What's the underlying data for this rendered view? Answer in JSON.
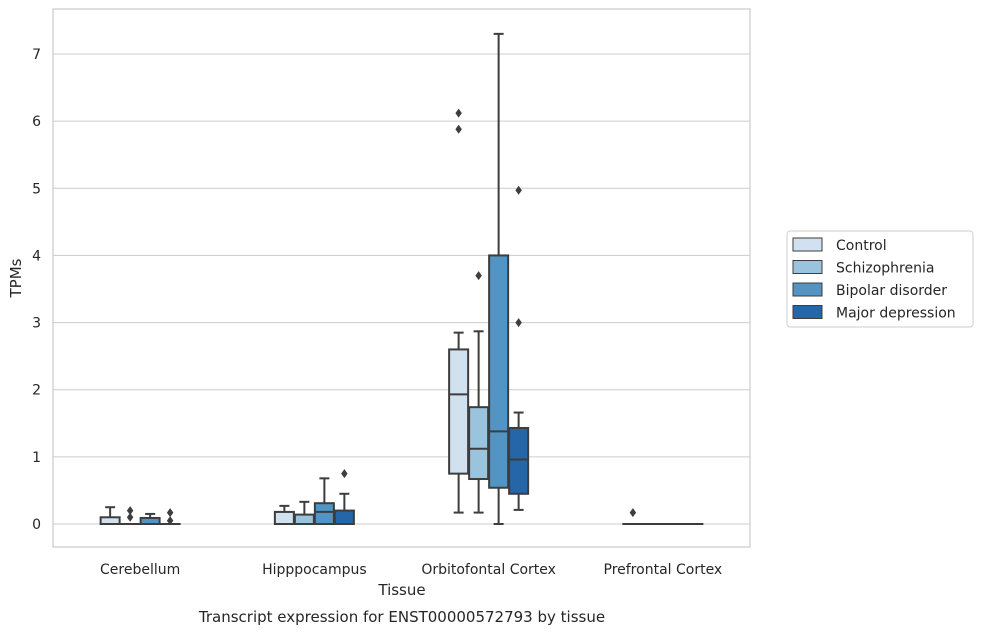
{
  "chart_data": {
    "type": "box",
    "caption": "Transcript expression for ENST00000572793 by tissue",
    "xlabel": "Tissue",
    "ylabel": "TPMs",
    "ylim": [
      -0.35,
      7.7
    ],
    "yticks": [
      0,
      1,
      2,
      3,
      4,
      5,
      6,
      7
    ],
    "grid": true,
    "legend_position": "right",
    "categories": [
      "Cerebellum",
      "Hipppocampus",
      "Orbitofontal Cortex",
      "Prefrontal Cortex"
    ],
    "series": [
      {
        "name": "Control",
        "color": "#d1e1f0",
        "boxes": [
          {
            "whislo": 0,
            "q1": 0,
            "med": 0,
            "q3": 0.1,
            "whishi": 0.25,
            "fliers": []
          },
          {
            "whislo": 0,
            "q1": 0,
            "med": 0,
            "q3": 0.18,
            "whishi": 0.27,
            "fliers": []
          },
          {
            "whislo": 0.17,
            "q1": 0.75,
            "med": 1.93,
            "q3": 2.6,
            "whishi": 2.85,
            "fliers": [
              5.88,
              6.12
            ]
          },
          {
            "whislo": 0,
            "q1": 0,
            "med": 0,
            "q3": 0,
            "whishi": 0,
            "fliers": [
              0.17
            ]
          }
        ]
      },
      {
        "name": "Schizophrenia",
        "color": "#9ac4dd",
        "boxes": [
          {
            "whislo": 0,
            "q1": 0,
            "med": 0,
            "q3": 0,
            "whishi": 0,
            "fliers": [
              0.1,
              0.2
            ]
          },
          {
            "whislo": 0,
            "q1": 0,
            "med": 0,
            "q3": 0.14,
            "whishi": 0.33,
            "fliers": []
          },
          {
            "whislo": 0.17,
            "q1": 0.67,
            "med": 1.12,
            "q3": 1.74,
            "whishi": 2.87,
            "fliers": [
              3.7
            ]
          },
          {
            "whislo": 0,
            "q1": 0,
            "med": 0,
            "q3": 0,
            "whishi": 0,
            "fliers": []
          }
        ]
      },
      {
        "name": "Bipolar disorder",
        "color": "#5294c4",
        "boxes": [
          {
            "whislo": 0,
            "q1": 0,
            "med": 0,
            "q3": 0.09,
            "whishi": 0.15,
            "fliers": []
          },
          {
            "whislo": 0,
            "q1": 0,
            "med": 0.18,
            "q3": 0.31,
            "whishi": 0.68,
            "fliers": []
          },
          {
            "whislo": 0,
            "q1": 0.54,
            "med": 1.38,
            "q3": 4.0,
            "whishi": 7.3,
            "fliers": []
          },
          {
            "whislo": 0,
            "q1": 0,
            "med": 0,
            "q3": 0,
            "whishi": 0,
            "fliers": []
          }
        ]
      },
      {
        "name": "Major depression",
        "color": "#2466a8",
        "boxes": [
          {
            "whislo": 0,
            "q1": 0,
            "med": 0,
            "q3": 0,
            "whishi": 0,
            "fliers": [
              0.05,
              0.17
            ]
          },
          {
            "whislo": 0,
            "q1": 0,
            "med": 0,
            "q3": 0.2,
            "whishi": 0.45,
            "fliers": [
              0.75
            ]
          },
          {
            "whislo": 0.21,
            "q1": 0.45,
            "med": 0.96,
            "q3": 1.43,
            "whishi": 1.66,
            "fliers": [
              3.0,
              4.97
            ]
          },
          {
            "whislo": 0,
            "q1": 0,
            "med": 0,
            "q3": 0,
            "whishi": 0,
            "fliers": []
          }
        ]
      }
    ]
  }
}
